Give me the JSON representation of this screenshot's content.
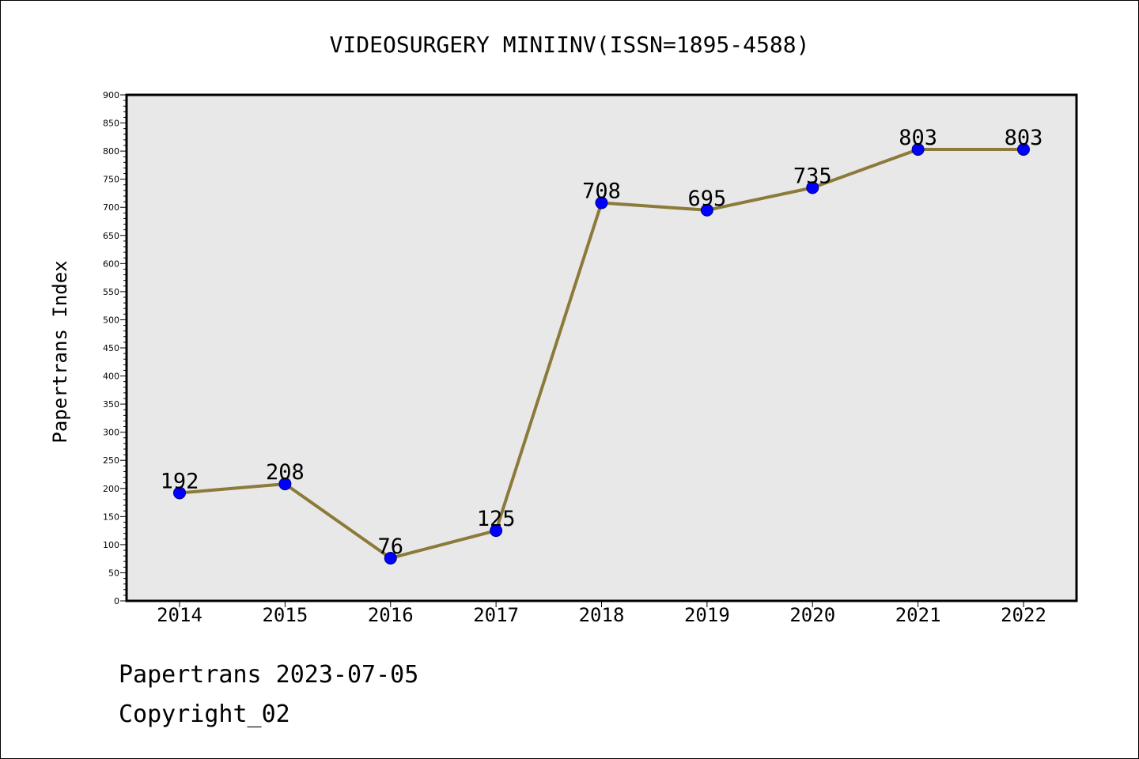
{
  "chart_data": {
    "type": "line",
    "title": "VIDEOSURGERY MINIINV(ISSN=1895-4588)",
    "xlabel": "",
    "ylabel": "Papertrans Index",
    "categories": [
      "2014",
      "2015",
      "2016",
      "2017",
      "2018",
      "2019",
      "2020",
      "2021",
      "2022"
    ],
    "series": [
      {
        "values": [
          192,
          208,
          76,
          125,
          708,
          695,
          735,
          803,
          803
        ]
      }
    ],
    "ylim": [
      0,
      900
    ],
    "ytick_step": 50,
    "ytick_labels": [
      "0",
      "50",
      "100",
      "150",
      "200",
      "250",
      "300",
      "350",
      "400",
      "450",
      "500",
      "550",
      "600",
      "650",
      "700",
      "750",
      "800",
      "850",
      "900"
    ],
    "grid": false,
    "legend": "none",
    "colors": {
      "line": "#8b7a3a",
      "marker": "#0000ff",
      "marker_edge": "#00008b",
      "plot_bg": "#e8e8e8"
    }
  },
  "footer": {
    "date_line": "Papertrans 2023-07-05",
    "copyright": "Copyright_02"
  }
}
